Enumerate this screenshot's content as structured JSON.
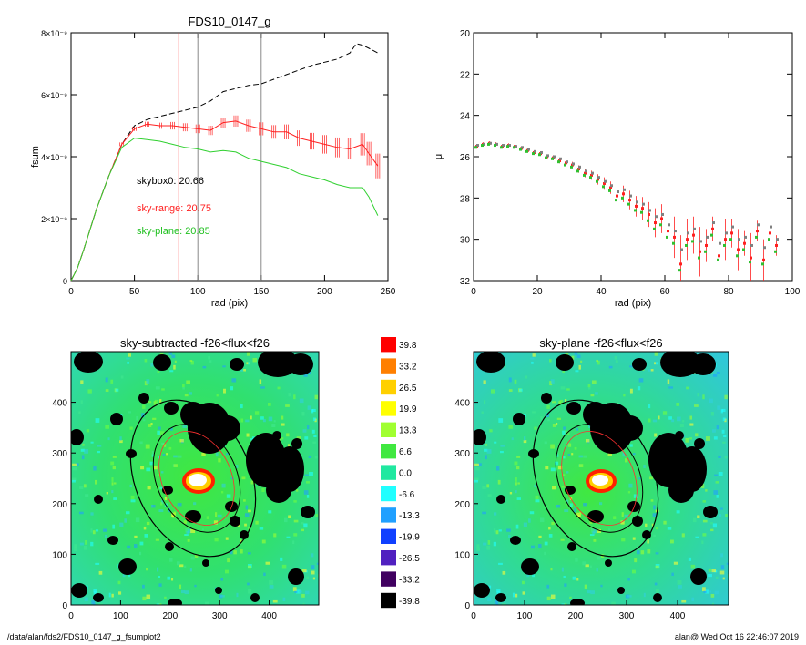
{
  "chart_data": [
    {
      "type": "line",
      "title": "FDS10_0147_g",
      "xlabel": "rad (pix)",
      "ylabel": "fsum",
      "xlim": [
        0,
        250
      ],
      "ylim": [
        0,
        8e-09
      ],
      "xticks": [
        "0",
        "50",
        "100",
        "150",
        "200",
        "250"
      ],
      "yticks": [
        "0",
        "2×10⁻⁹",
        "4×10⁻⁹",
        "6×10⁻⁹",
        "8×10⁻⁹"
      ],
      "vertical_lines": [
        {
          "x": 85,
          "color": "#ff3030"
        },
        {
          "x": 100,
          "color": "#888888"
        },
        {
          "x": 150,
          "color": "#888888"
        }
      ],
      "annotations": [
        {
          "text": "skybox0: 20.66",
          "color": "#000000"
        },
        {
          "text": "sky-range: 20.75",
          "color": "#ff2020"
        },
        {
          "text": "sky-plane: 20.85",
          "color": "#20c020"
        }
      ],
      "series": [
        {
          "style": "dashed",
          "color": "#000000",
          "x": [
            0,
            5,
            10,
            20,
            30,
            40,
            50,
            60,
            70,
            80,
            90,
            100,
            110,
            120,
            130,
            140,
            150,
            160,
            170,
            180,
            190,
            200,
            210,
            220,
            225,
            230,
            235,
            242
          ],
          "y": [
            0,
            4e-10,
            1e-09,
            2.3e-09,
            3.4e-09,
            4.4e-09,
            5e-09,
            5.2e-09,
            5.3e-09,
            5.4e-09,
            5.5e-09,
            5.6e-09,
            5.8e-09,
            6.1e-09,
            6.2e-09,
            6.3e-09,
            6.35e-09,
            6.5e-09,
            6.65e-09,
            6.8e-09,
            6.95e-09,
            7.05e-09,
            7.15e-09,
            7.35e-09,
            7.65e-09,
            7.6e-09,
            7.5e-09,
            7.35e-09
          ]
        },
        {
          "style": "errorbar",
          "color": "#ff2020",
          "x": [
            0,
            5,
            10,
            20,
            30,
            40,
            50,
            60,
            70,
            80,
            90,
            100,
            110,
            120,
            130,
            140,
            150,
            160,
            170,
            180,
            190,
            200,
            210,
            220,
            230,
            235,
            242
          ],
          "y": [
            0,
            4e-10,
            1e-09,
            2.3e-09,
            3.4e-09,
            4.4e-09,
            4.9e-09,
            5.05e-09,
            5e-09,
            5e-09,
            4.95e-09,
            4.9e-09,
            4.85e-09,
            5.1e-09,
            5.15e-09,
            5e-09,
            4.9e-09,
            4.8e-09,
            4.8e-09,
            4.6e-09,
            4.5e-09,
            4.4e-09,
            4.3e-09,
            4.25e-09,
            4.4e-09,
            4.1e-09,
            3.7e-09
          ],
          "err": [
            0,
            2e-11,
            3e-11,
            4e-11,
            5e-11,
            6e-11,
            7e-11,
            8e-11,
            1e-10,
            1.2e-10,
            1.3e-10,
            1.4e-10,
            1.5e-10,
            1.6e-10,
            1.8e-10,
            2e-10,
            2.1e-10,
            2.2e-10,
            2.4e-10,
            2.5e-10,
            2.7e-10,
            3e-10,
            3.2e-10,
            3.4e-10,
            3.6e-10,
            3.8e-10,
            4e-10
          ]
        },
        {
          "style": "solid",
          "color": "#30d030",
          "x": [
            0,
            5,
            10,
            20,
            30,
            40,
            50,
            60,
            70,
            80,
            90,
            100,
            110,
            120,
            130,
            140,
            150,
            160,
            170,
            180,
            190,
            200,
            210,
            220,
            230,
            235,
            242
          ],
          "y": [
            0,
            4e-10,
            1e-09,
            2.3e-09,
            3.4e-09,
            4.3e-09,
            4.6e-09,
            4.55e-09,
            4.5e-09,
            4.4e-09,
            4.3e-09,
            4.25e-09,
            4.15e-09,
            4.2e-09,
            4.15e-09,
            3.95e-09,
            3.85e-09,
            3.75e-09,
            3.65e-09,
            3.45e-09,
            3.35e-09,
            3.25e-09,
            3.1e-09,
            3e-09,
            3e-09,
            2.7e-09,
            2.1e-09
          ]
        }
      ]
    },
    {
      "type": "scatter",
      "xlabel": "rad (pix)",
      "ylabel": "μ",
      "xlim": [
        0,
        100
      ],
      "ylim": [
        32,
        20
      ],
      "xticks": [
        "0",
        "20",
        "40",
        "60",
        "80",
        "100"
      ],
      "yticks": [
        "20",
        "22",
        "24",
        "26",
        "28",
        "30",
        "32"
      ],
      "series": [
        {
          "style": "errorbar",
          "color": "#ff2020",
          "x": [
            1,
            3,
            5,
            7,
            9,
            11,
            13,
            15,
            17,
            19,
            21,
            23,
            25,
            27,
            29,
            31,
            33,
            35,
            37,
            39,
            41,
            43,
            45,
            47,
            49,
            51,
            53,
            55,
            57,
            59,
            61,
            63,
            65,
            67,
            69,
            71,
            73,
            75,
            77,
            79,
            81,
            83,
            85,
            87,
            89,
            91,
            93,
            95
          ],
          "y": [
            25.5,
            25.4,
            25.35,
            25.4,
            25.5,
            25.45,
            25.5,
            25.6,
            25.7,
            25.8,
            25.85,
            26.0,
            26.05,
            26.2,
            26.3,
            26.4,
            26.6,
            26.8,
            26.9,
            27.1,
            27.3,
            27.5,
            27.9,
            27.8,
            28.1,
            28.4,
            28.5,
            28.8,
            29.2,
            29.0,
            29.6,
            29.9,
            31.2,
            30.0,
            29.8,
            30.6,
            30.3,
            29.5,
            30.8,
            30.0,
            29.7,
            30.5,
            30.2,
            30.9,
            29.6,
            31.0,
            29.7,
            30.3
          ],
          "err": [
            0.1,
            0.1,
            0.1,
            0.1,
            0.1,
            0.1,
            0.1,
            0.1,
            0.1,
            0.1,
            0.1,
            0.1,
            0.12,
            0.12,
            0.15,
            0.15,
            0.18,
            0.2,
            0.22,
            0.25,
            0.3,
            0.3,
            0.35,
            0.4,
            0.45,
            0.5,
            0.55,
            0.6,
            0.7,
            0.7,
            0.8,
            1.0,
            1.4,
            1.0,
            0.9,
            1.2,
            0.8,
            0.6,
            1.5,
            1.0,
            0.7,
            1.0,
            0.6,
            1.2,
            0.5,
            1.0,
            0.6,
            0.5
          ]
        },
        {
          "style": "points",
          "color": "#808080",
          "x": [
            1,
            3,
            5,
            7,
            9,
            11,
            13,
            15,
            17,
            19,
            21,
            23,
            25,
            27,
            29,
            31,
            33,
            35,
            37,
            39,
            41,
            43,
            45,
            47,
            49,
            51,
            53,
            55,
            57,
            59,
            61,
            63,
            65,
            67,
            69,
            71,
            73,
            75,
            77,
            79,
            81,
            83,
            85,
            87,
            89,
            91,
            93,
            95
          ],
          "y": [
            25.45,
            25.4,
            25.35,
            25.4,
            25.45,
            25.45,
            25.5,
            25.55,
            25.65,
            25.75,
            25.8,
            25.95,
            26.0,
            26.1,
            26.25,
            26.35,
            26.5,
            26.7,
            26.8,
            27.0,
            27.2,
            27.4,
            27.7,
            27.6,
            27.9,
            28.2,
            28.3,
            28.6,
            28.9,
            28.8,
            29.3,
            29.6,
            30.5,
            29.7,
            29.5,
            30.1,
            29.9,
            29.2,
            30.2,
            29.7,
            29.4,
            30.0,
            29.9,
            30.3,
            29.3,
            30.4,
            29.4,
            30.0
          ]
        },
        {
          "style": "points",
          "color": "#30c030",
          "x": [
            1,
            3,
            5,
            7,
            9,
            11,
            13,
            15,
            17,
            19,
            21,
            23,
            25,
            27,
            29,
            31,
            33,
            35,
            37,
            39,
            41,
            43,
            45,
            47,
            49,
            51,
            53,
            55,
            57,
            59,
            61,
            63,
            65,
            67,
            69,
            71,
            73,
            75,
            77,
            79,
            81,
            83,
            85,
            87,
            89,
            91,
            93,
            95
          ],
          "y": [
            25.55,
            25.45,
            25.4,
            25.45,
            25.55,
            25.5,
            25.55,
            25.65,
            25.75,
            25.85,
            25.9,
            26.05,
            26.1,
            26.25,
            26.4,
            26.5,
            26.7,
            26.9,
            27.0,
            27.2,
            27.45,
            27.65,
            28.1,
            28.0,
            28.3,
            28.6,
            28.7,
            29.1,
            29.5,
            29.3,
            29.9,
            30.2,
            31.5,
            30.3,
            30.1,
            30.9,
            30.6,
            29.8,
            31.0,
            30.3,
            30.0,
            30.8,
            30.5,
            31.1,
            29.9,
            31.2,
            30.0,
            30.6
          ]
        }
      ]
    },
    {
      "type": "heatmap",
      "title": "sky-subtracted -f26<flux<f26",
      "xlim": [
        0,
        500
      ],
      "ylim": [
        0,
        500
      ],
      "xticks": [
        "0",
        "100",
        "200",
        "300",
        "400"
      ],
      "yticks": [
        "0",
        "100",
        "200",
        "300",
        "400"
      ]
    },
    {
      "type": "heatmap",
      "title": "sky-plane -f26<flux<f26",
      "xlim": [
        0,
        500
      ],
      "ylim": [
        0,
        500
      ],
      "xticks": [
        "0",
        "100",
        "200",
        "300",
        "400"
      ],
      "yticks": [
        "0",
        "100",
        "200",
        "300",
        "400"
      ]
    }
  ],
  "colorbar": {
    "labels": [
      "39.8",
      "33.2",
      "26.5",
      "19.9",
      "13.3",
      "6.6",
      "0.0",
      "-6.6",
      "-13.3",
      "-19.9",
      "-26.5",
      "-33.2",
      "-39.8"
    ],
    "colors": [
      "#ff0000",
      "#ff7f00",
      "#ffd000",
      "#ffff00",
      "#a0ff30",
      "#40e840",
      "#20e8a0",
      "#20ffff",
      "#20a0ff",
      "#1040ff",
      "#5020c0",
      "#400060",
      "#000000"
    ]
  },
  "footer": {
    "left": "/data/alan/fds2/FDS10_0147_g_fsumplot2",
    "right": "alan@  Wed Oct 16 22:46:07 2019"
  }
}
